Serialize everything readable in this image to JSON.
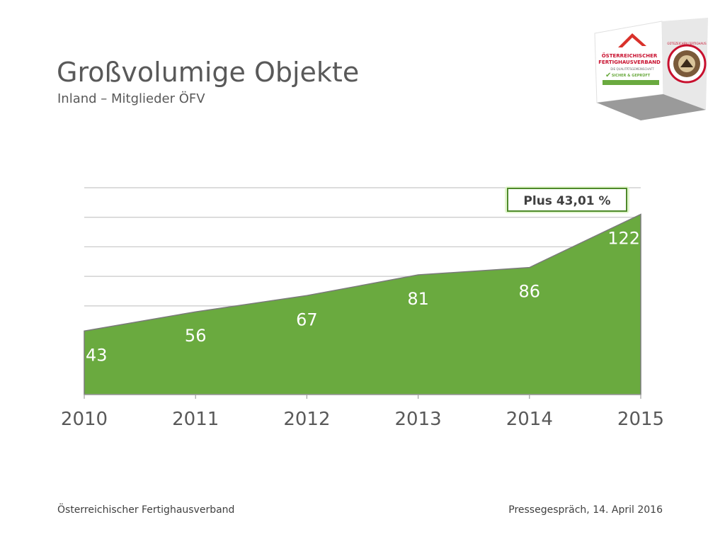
{
  "header": {
    "title": "Großvolumige Objekte",
    "subtitle": "Inland – Mitglieder ÖFV"
  },
  "logo": {
    "line1": "ÖSTERREICHISCHER",
    "line2": "FERTIGHAUSVERBAND",
    "tagline": "DIE QUALITÄTSGEMEINSCHAFT",
    "badge": "SICHER & GEPRÜFT",
    "seal": "GÜTEZEICHEN FERTIGHAUS"
  },
  "chart_data": {
    "type": "area",
    "categories": [
      "2010",
      "2011",
      "2012",
      "2013",
      "2014",
      "2015"
    ],
    "values": [
      43,
      56,
      67,
      81,
      86,
      122
    ],
    "annotation": "Plus 43,01 %",
    "ylim": [
      0,
      140
    ],
    "grid": true,
    "color": "#6aaa3f"
  },
  "footer": {
    "left": "Österreichischer Fertighausverband",
    "right": "Pressegespräch, 14. April 2016"
  }
}
